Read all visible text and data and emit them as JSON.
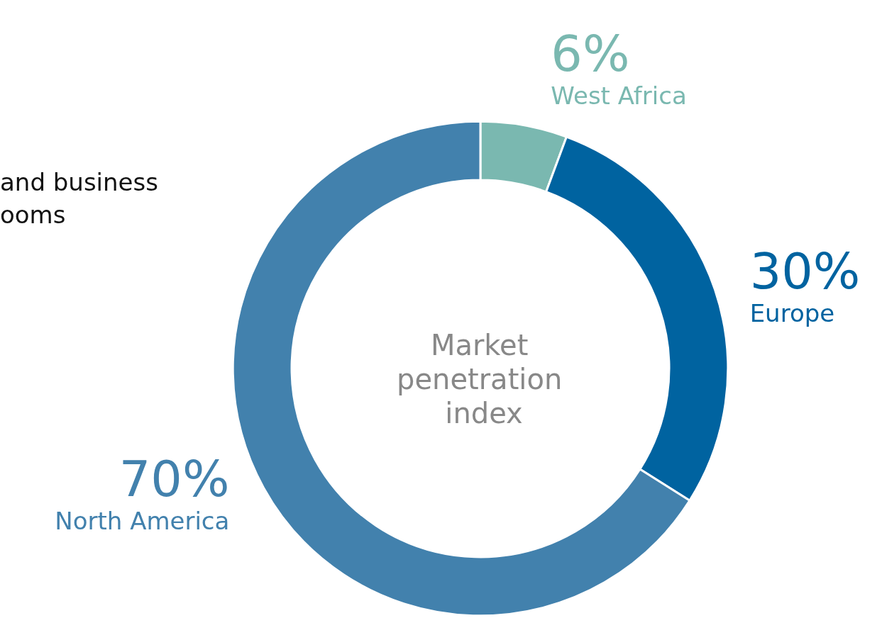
{
  "chart_data": {
    "type": "donut",
    "title": "Market penetration index",
    "categories": [
      "West Africa",
      "Europe",
      "North America"
    ],
    "values": [
      6,
      30,
      70
    ],
    "colors": [
      "#7ab8b0",
      "#0063a0",
      "#4281ad"
    ],
    "value_labels": [
      "6%",
      "30%",
      "70%"
    ],
    "annotations": [
      "and business",
      "ooms"
    ]
  }
}
